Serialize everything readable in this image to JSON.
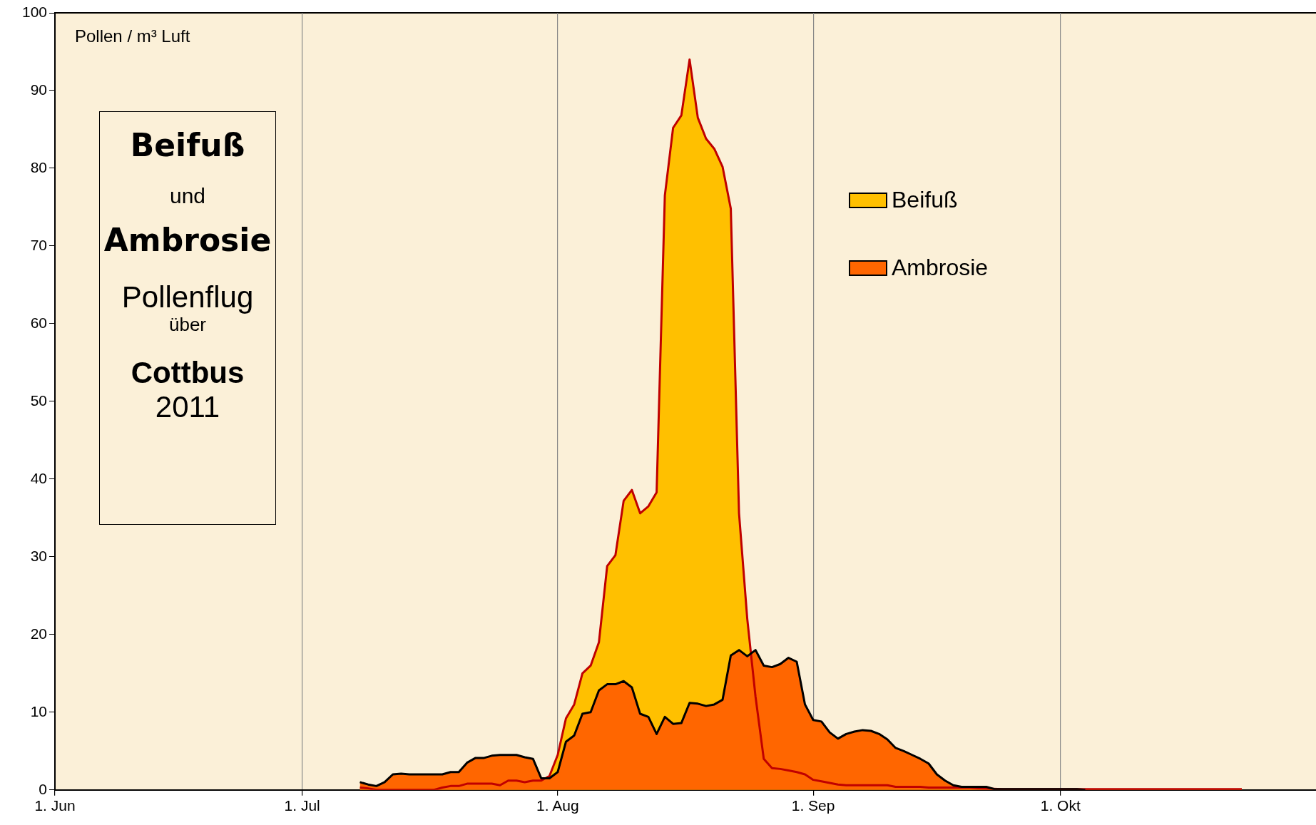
{
  "chart_data": {
    "type": "area",
    "ylabel": "Pollen / m³ Luft",
    "annotations": [
      "Beifuß",
      "und",
      "Ambrosie",
      "Pollenflug",
      "über",
      "Cottbus",
      "2011"
    ],
    "xlim": [
      "2011-06-01",
      "2011-11-01"
    ],
    "xticks": [
      {
        "value": "2011-06-01",
        "label": "1. Jun"
      },
      {
        "value": "2011-07-01",
        "label": "1. Jul"
      },
      {
        "value": "2011-08-01",
        "label": "1. Aug"
      },
      {
        "value": "2011-09-01",
        "label": "1. Sep"
      },
      {
        "value": "2011-10-01",
        "label": "1. Okt"
      }
    ],
    "ylim": [
      0,
      100
    ],
    "yticks": [
      0,
      10,
      20,
      30,
      40,
      50,
      60,
      70,
      80,
      90,
      100
    ],
    "grid": "x",
    "legend": "top right",
    "marker": "none",
    "series": [
      {
        "name": "Beifuß",
        "color": "#ffc000",
        "x": [
          "2011-07-08",
          "2011-07-09",
          "2011-07-10",
          "2011-07-17",
          "2011-07-18",
          "2011-07-19",
          "2011-07-20",
          "2011-07-21",
          "2011-07-22",
          "2011-07-23",
          "2011-07-24",
          "2011-07-25",
          "2011-07-26",
          "2011-07-27",
          "2011-07-28",
          "2011-07-29",
          "2011-07-30",
          "2011-07-31",
          "2011-08-01",
          "2011-08-02",
          "2011-08-03",
          "2011-08-04",
          "2011-08-05",
          "2011-08-06",
          "2011-08-07",
          "2011-08-08",
          "2011-08-09",
          "2011-08-10",
          "2011-08-11",
          "2011-08-12",
          "2011-08-13",
          "2011-08-14",
          "2011-08-15",
          "2011-08-16",
          "2011-08-17",
          "2011-08-18",
          "2011-08-19",
          "2011-08-20",
          "2011-08-21",
          "2011-08-22",
          "2011-08-23",
          "2011-08-24",
          "2011-08-25",
          "2011-08-26",
          "2011-08-27",
          "2011-08-28",
          "2011-08-29",
          "2011-08-30",
          "2011-08-31",
          "2011-09-01",
          "2011-09-02",
          "2011-09-03",
          "2011-09-04",
          "2011-09-05",
          "2011-09-10",
          "2011-09-11",
          "2011-09-14",
          "2011-09-15",
          "2011-09-20",
          "2011-09-21",
          "2011-09-24",
          "2011-10-23"
        ],
        "values": [
          0.3,
          0.2,
          0,
          0,
          0.3,
          0.5,
          0.5,
          0.8,
          0.8,
          0.8,
          0.8,
          0.6,
          1.2,
          1.2,
          1.0,
          1.2,
          1.2,
          1.8,
          4.5,
          9.2,
          11,
          15,
          16,
          19,
          28.8,
          30.2,
          37.2,
          38.6,
          35.6,
          36.5,
          38.3,
          76.5,
          85.2,
          86.8,
          94,
          86.5,
          83.8,
          82.5,
          80.2,
          74.8,
          35.6,
          22,
          12,
          4,
          2.8,
          2.7,
          2.5,
          2.3,
          2,
          1.3,
          1.1,
          0.9,
          0.7,
          0.6,
          0.6,
          0.4,
          0.4,
          0.3,
          0.3,
          0.2,
          0.1,
          0.1
        ]
      },
      {
        "name": "Ambrosie",
        "color": "#ff6600",
        "x": [
          "2011-07-08",
          "2011-07-09",
          "2011-07-10",
          "2011-07-11",
          "2011-07-12",
          "2011-07-13",
          "2011-07-14",
          "2011-07-15",
          "2011-07-16",
          "2011-07-17",
          "2011-07-18",
          "2011-07-19",
          "2011-07-20",
          "2011-07-21",
          "2011-07-22",
          "2011-07-23",
          "2011-07-24",
          "2011-07-25",
          "2011-07-26",
          "2011-07-27",
          "2011-07-28",
          "2011-07-29",
          "2011-07-30",
          "2011-07-31",
          "2011-08-01",
          "2011-08-02",
          "2011-08-03",
          "2011-08-04",
          "2011-08-05",
          "2011-08-06",
          "2011-08-07",
          "2011-08-08",
          "2011-08-09",
          "2011-08-10",
          "2011-08-11",
          "2011-08-12",
          "2011-08-13",
          "2011-08-14",
          "2011-08-15",
          "2011-08-16",
          "2011-08-17",
          "2011-08-18",
          "2011-08-19",
          "2011-08-20",
          "2011-08-21",
          "2011-08-22",
          "2011-08-23",
          "2011-08-24",
          "2011-08-25",
          "2011-08-26",
          "2011-08-27",
          "2011-08-28",
          "2011-08-29",
          "2011-08-30",
          "2011-08-31",
          "2011-09-01",
          "2011-09-02",
          "2011-09-03",
          "2011-09-04",
          "2011-09-05",
          "2011-09-06",
          "2011-09-07",
          "2011-09-08",
          "2011-09-09",
          "2011-09-10",
          "2011-09-11",
          "2011-09-12",
          "2011-09-13",
          "2011-09-14",
          "2011-09-15",
          "2011-09-16",
          "2011-09-17",
          "2011-09-18",
          "2011-09-19",
          "2011-09-20",
          "2011-09-21",
          "2011-09-22",
          "2011-09-23",
          "2011-10-03",
          "2011-10-04"
        ],
        "values": [
          1.0,
          0.7,
          0.5,
          1.0,
          2.0,
          2.1,
          2.0,
          2.0,
          2.0,
          2.0,
          2.0,
          2.3,
          2.3,
          3.5,
          4.1,
          4.1,
          4.4,
          4.5,
          4.5,
          4.5,
          4.2,
          4.0,
          1.5,
          1.5,
          2.3,
          6.2,
          7.0,
          9.8,
          10.0,
          12.8,
          13.6,
          13.6,
          14.0,
          13.2,
          9.8,
          9.4,
          7.2,
          9.4,
          8.5,
          8.6,
          11.2,
          11.1,
          10.8,
          11.0,
          11.6,
          17.3,
          18.0,
          17.2,
          18.0,
          16.0,
          15.8,
          16.2,
          17.0,
          16.5,
          11.0,
          9.0,
          8.8,
          7.4,
          6.6,
          7.2,
          7.5,
          7.7,
          7.6,
          7.2,
          6.5,
          5.4,
          5.0,
          4.5,
          4.0,
          3.4,
          2.0,
          1.2,
          0.6,
          0.4,
          0.4,
          0.4,
          0.4,
          0.1,
          0.1,
          0
        ]
      }
    ]
  }
}
